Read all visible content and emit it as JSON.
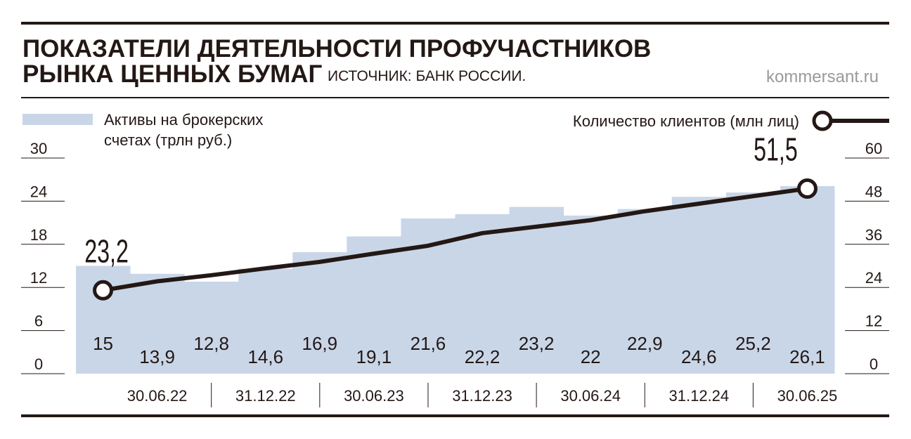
{
  "chart_data": {
    "type": "bar-line",
    "title": [
      "ПОКАЗАТЕЛИ ДЕЯТЕЛЬНОСТИ ПРОФУЧАСТНИКОВ",
      "РЫНКА ЦЕННЫХ БУМАГ"
    ],
    "source": "ИСТОЧНИК: БАНК РОССИИ.",
    "site": "kommersant.ru",
    "categories": [
      null,
      "30.06.22",
      null,
      "31.12.22",
      null,
      "30.06.23",
      null,
      "31.12.23",
      null,
      "30.06.24",
      null,
      "31.12.24",
      null,
      "30.06.25"
    ],
    "series": [
      {
        "name": "Активы на брокерских счетах (трлн руб.)",
        "type": "bar",
        "color": "#c9d6e8",
        "values": [
          15,
          13.9,
          12.8,
          14.6,
          16.9,
          19.1,
          21.6,
          22.2,
          23.2,
          22,
          22.9,
          24.6,
          25.2,
          26.1
        ],
        "value_labels": [
          "15",
          "13,9",
          "12,8",
          "14,6",
          "16,9",
          "19,1",
          "21,6",
          "22,2",
          "23,2",
          "22",
          "22,9",
          "24,6",
          "25,2",
          "26,1"
        ]
      },
      {
        "name": "Количество клиентов (млн лиц)",
        "type": "line",
        "axis": "y2",
        "color": "#231815",
        "values": [
          23.2,
          25.7,
          27.4,
          29.3,
          31.1,
          33.4,
          35.6,
          39.1,
          40.9,
          42.7,
          45.2,
          47.3,
          49.4,
          51.5
        ],
        "value_labels": [
          "23,2",
          null,
          null,
          null,
          null,
          null,
          null,
          null,
          null,
          null,
          null,
          null,
          null,
          "51,5"
        ]
      }
    ],
    "ylim": [
      0,
      30
    ],
    "yticks": [
      0,
      6,
      12,
      18,
      24,
      30
    ],
    "y2lim": [
      0,
      60
    ],
    "y2ticks": [
      0,
      12,
      24,
      36,
      48,
      60
    ]
  }
}
